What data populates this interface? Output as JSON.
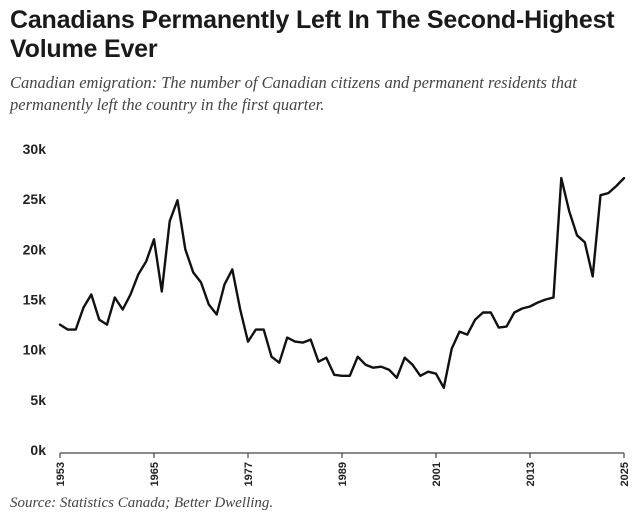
{
  "header": {
    "title": "Canadians Permanently Left In The Second-Highest Volume Ever",
    "subtitle": "Canadian emigration: The number of Canadian citizens and permanent residents that permanently left the country in the first quarter."
  },
  "footer": {
    "source": "Source: Statistics Canada; Better Dwelling."
  },
  "chart_data": {
    "type": "line",
    "title": "Canadians Permanently Left In The Second-Highest Volume Ever",
    "xlabel": "",
    "ylabel": "",
    "ylim": [
      0,
      30000
    ],
    "grid": false,
    "legend": "none",
    "y_ticks": [
      {
        "value": 30000,
        "label": "30k"
      },
      {
        "value": 25000,
        "label": "25k"
      },
      {
        "value": 20000,
        "label": "20k"
      },
      {
        "value": 15000,
        "label": "15k"
      },
      {
        "value": 10000,
        "label": "10k"
      },
      {
        "value": 5000,
        "label": "5k"
      },
      {
        "value": 0,
        "label": "0k"
      }
    ],
    "x_ticks": [
      "1953",
      "1965",
      "1977",
      "1989",
      "2001",
      "2013",
      "2025"
    ],
    "series": [
      {
        "name": "Canadian emigration (Q1)",
        "color": "#111111",
        "x": [
          1953,
          1954,
          1955,
          1956,
          1957,
          1958,
          1959,
          1960,
          1961,
          1962,
          1963,
          1964,
          1965,
          1966,
          1967,
          1968,
          1969,
          1970,
          1971,
          1972,
          1973,
          1974,
          1975,
          1976,
          1977,
          1978,
          1979,
          1980,
          1981,
          1982,
          1983,
          1984,
          1985,
          1986,
          1987,
          1988,
          1989,
          1990,
          1991,
          1992,
          1993,
          1994,
          1995,
          1996,
          1997,
          1998,
          1999,
          2000,
          2001,
          2002,
          2003,
          2004,
          2005,
          2006,
          2007,
          2008,
          2009,
          2010,
          2011,
          2012,
          2013,
          2014,
          2015,
          2016,
          2017,
          2018,
          2019,
          2020,
          2021,
          2022,
          2023,
          2024,
          2025
        ],
        "values": [
          12500,
          12000,
          12000,
          14200,
          15500,
          13000,
          12500,
          15200,
          14000,
          15500,
          17500,
          18800,
          21000,
          15800,
          22800,
          24900,
          20000,
          17700,
          16700,
          14500,
          13500,
          16500,
          18000,
          14000,
          10800,
          12000,
          12000,
          9300,
          8700,
          11200,
          10800,
          10700,
          11000,
          8800,
          9200,
          7500,
          7400,
          7400,
          9300,
          8500,
          8200,
          8300,
          8000,
          7200,
          9200,
          8500,
          7400,
          7800,
          7600,
          6200,
          10100,
          11800,
          11500,
          13000,
          13700,
          13700,
          12200,
          12300,
          13700,
          14100,
          14300,
          14700,
          15000,
          15200,
          27100,
          23800,
          21400,
          20700,
          17300,
          25400,
          25600,
          26300,
          27100
        ]
      }
    ]
  }
}
